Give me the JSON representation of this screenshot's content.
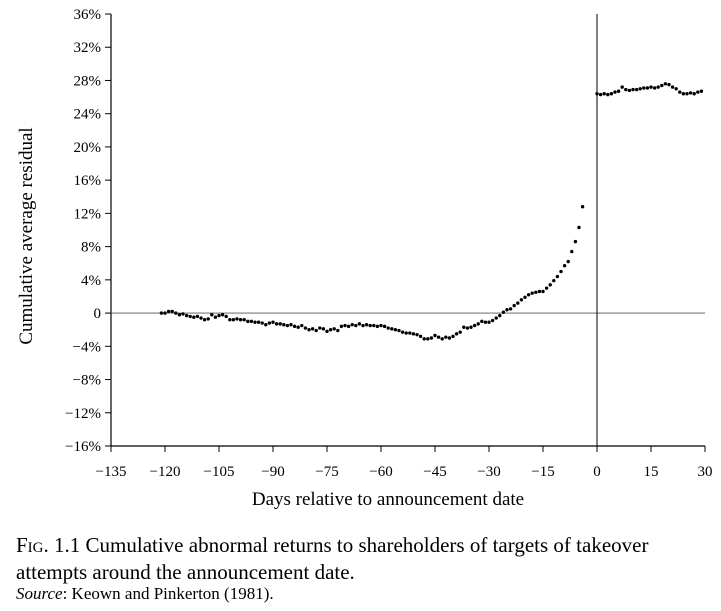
{
  "figure": {
    "label": "Fig. 1.1",
    "caption": "Cumulative abnormal returns to shareholders of targets of takeover attempts around the announcement date.",
    "source_label": "Source",
    "source_text": ": Keown and Pinkerton (1981)."
  },
  "chart_data": {
    "type": "scatter",
    "title": "",
    "xlabel": "Days relative to announcement date",
    "ylabel": "Cumulative average residual",
    "xlim": [
      -135,
      30
    ],
    "ylim": [
      -16,
      36
    ],
    "x_ticks": [
      {
        "value": -135,
        "label": "−135"
      },
      {
        "value": -120,
        "label": "−120"
      },
      {
        "value": -105,
        "label": "−105"
      },
      {
        "value": -90,
        "label": "−90"
      },
      {
        "value": -75,
        "label": "−75"
      },
      {
        "value": -60,
        "label": "−60"
      },
      {
        "value": -45,
        "label": "−45"
      },
      {
        "value": -30,
        "label": "−30"
      },
      {
        "value": -15,
        "label": "−15"
      },
      {
        "value": 0,
        "label": "0"
      },
      {
        "value": 15,
        "label": "15"
      },
      {
        "value": 30,
        "label": "30"
      }
    ],
    "y_ticks": [
      {
        "value": 36,
        "label": "36%"
      },
      {
        "value": 32,
        "label": "32%"
      },
      {
        "value": 28,
        "label": "28%"
      },
      {
        "value": 24,
        "label": "24%"
      },
      {
        "value": 20,
        "label": "20%"
      },
      {
        "value": 16,
        "label": "16%"
      },
      {
        "value": 12,
        "label": "12%"
      },
      {
        "value": 8,
        "label": "8%"
      },
      {
        "value": 4,
        "label": "4%"
      },
      {
        "value": 0,
        "label": "0"
      },
      {
        "value": -4,
        "label": "−4%"
      },
      {
        "value": -8,
        "label": "−8%"
      },
      {
        "value": -12,
        "label": "−12%"
      },
      {
        "value": -16,
        "label": "−16%"
      }
    ],
    "reference_lines": {
      "horizontal_at_y": 0,
      "vertical_at_x": 0
    },
    "grid": false,
    "series": [
      {
        "color": "#000000",
        "points": [
          [
            -121,
            0.0
          ],
          [
            -120,
            0.0
          ],
          [
            -119,
            0.2
          ],
          [
            -118,
            0.2
          ],
          [
            -117,
            0.0
          ],
          [
            -116,
            -0.2
          ],
          [
            -115,
            -0.1
          ],
          [
            -114,
            -0.3
          ],
          [
            -113,
            -0.4
          ],
          [
            -112,
            -0.5
          ],
          [
            -111,
            -0.4
          ],
          [
            -110,
            -0.6
          ],
          [
            -109,
            -0.8
          ],
          [
            -108,
            -0.7
          ],
          [
            -107,
            -0.2
          ],
          [
            -106,
            -0.5
          ],
          [
            -105,
            -0.3
          ],
          [
            -104,
            -0.2
          ],
          [
            -103,
            -0.4
          ],
          [
            -102,
            -0.8
          ],
          [
            -101,
            -0.8
          ],
          [
            -100,
            -0.7
          ],
          [
            -99,
            -0.8
          ],
          [
            -98,
            -0.8
          ],
          [
            -97,
            -1.0
          ],
          [
            -96,
            -1.0
          ],
          [
            -95,
            -1.1
          ],
          [
            -94,
            -1.1
          ],
          [
            -93,
            -1.2
          ],
          [
            -92,
            -1.4
          ],
          [
            -91,
            -1.2
          ],
          [
            -90,
            -1.1
          ],
          [
            -89,
            -1.3
          ],
          [
            -88,
            -1.3
          ],
          [
            -87,
            -1.4
          ],
          [
            -86,
            -1.5
          ],
          [
            -85,
            -1.4
          ],
          [
            -84,
            -1.6
          ],
          [
            -83,
            -1.7
          ],
          [
            -82,
            -1.5
          ],
          [
            -81,
            -1.8
          ],
          [
            -80,
            -2.0
          ],
          [
            -79,
            -1.9
          ],
          [
            -78,
            -2.1
          ],
          [
            -77,
            -1.8
          ],
          [
            -76,
            -1.9
          ],
          [
            -75,
            -2.2
          ],
          [
            -74,
            -2.0
          ],
          [
            -73,
            -1.9
          ],
          [
            -72,
            -2.1
          ],
          [
            -71,
            -1.6
          ],
          [
            -70,
            -1.5
          ],
          [
            -69,
            -1.6
          ],
          [
            -68,
            -1.4
          ],
          [
            -67,
            -1.5
          ],
          [
            -66,
            -1.3
          ],
          [
            -65,
            -1.5
          ],
          [
            -64,
            -1.4
          ],
          [
            -63,
            -1.5
          ],
          [
            -62,
            -1.5
          ],
          [
            -61,
            -1.6
          ],
          [
            -60,
            -1.5
          ],
          [
            -59,
            -1.6
          ],
          [
            -58,
            -1.8
          ],
          [
            -57,
            -1.9
          ],
          [
            -56,
            -2.0
          ],
          [
            -55,
            -2.1
          ],
          [
            -54,
            -2.3
          ],
          [
            -53,
            -2.4
          ],
          [
            -52,
            -2.4
          ],
          [
            -51,
            -2.5
          ],
          [
            -50,
            -2.6
          ],
          [
            -49,
            -2.8
          ],
          [
            -48,
            -3.1
          ],
          [
            -47,
            -3.1
          ],
          [
            -46,
            -3.0
          ],
          [
            -45,
            -2.7
          ],
          [
            -44,
            -2.9
          ],
          [
            -43,
            -3.1
          ],
          [
            -42,
            -2.9
          ],
          [
            -41,
            -3.0
          ],
          [
            -40,
            -2.8
          ],
          [
            -39,
            -2.5
          ],
          [
            -38,
            -2.3
          ],
          [
            -37,
            -1.7
          ],
          [
            -36,
            -1.8
          ],
          [
            -35,
            -1.7
          ],
          [
            -34,
            -1.5
          ],
          [
            -33,
            -1.3
          ],
          [
            -32,
            -1.0
          ],
          [
            -31,
            -1.1
          ],
          [
            -30,
            -1.1
          ],
          [
            -29,
            -0.9
          ],
          [
            -28,
            -0.6
          ],
          [
            -27,
            -0.3
          ],
          [
            -26,
            0.1
          ],
          [
            -25,
            0.4
          ],
          [
            -24,
            0.5
          ],
          [
            -23,
            0.9
          ],
          [
            -22,
            1.2
          ],
          [
            -21,
            1.6
          ],
          [
            -20,
            1.9
          ],
          [
            -19,
            2.2
          ],
          [
            -18,
            2.4
          ],
          [
            -17,
            2.5
          ],
          [
            -16,
            2.6
          ],
          [
            -15,
            2.6
          ],
          [
            -14,
            3.0
          ],
          [
            -13,
            3.4
          ],
          [
            -12,
            3.9
          ],
          [
            -11,
            4.4
          ],
          [
            -10,
            5.0
          ],
          [
            -9,
            5.7
          ],
          [
            -8,
            6.2
          ],
          [
            -7,
            7.4
          ],
          [
            -6,
            8.6
          ],
          [
            -5,
            10.3
          ],
          [
            -4,
            12.8
          ],
          [
            0,
            26.4
          ],
          [
            1,
            26.3
          ],
          [
            2,
            26.4
          ],
          [
            3,
            26.3
          ],
          [
            4,
            26.4
          ],
          [
            5,
            26.6
          ],
          [
            6,
            26.7
          ],
          [
            7,
            27.2
          ],
          [
            8,
            26.9
          ],
          [
            9,
            26.8
          ],
          [
            10,
            26.9
          ],
          [
            11,
            26.9
          ],
          [
            12,
            27.0
          ],
          [
            13,
            27.1
          ],
          [
            14,
            27.1
          ],
          [
            15,
            27.2
          ],
          [
            16,
            27.1
          ],
          [
            17,
            27.2
          ],
          [
            18,
            27.4
          ],
          [
            19,
            27.6
          ],
          [
            20,
            27.5
          ],
          [
            21,
            27.2
          ],
          [
            22,
            27.0
          ],
          [
            23,
            26.6
          ],
          [
            24,
            26.4
          ],
          [
            25,
            26.4
          ],
          [
            26,
            26.5
          ],
          [
            27,
            26.4
          ],
          [
            28,
            26.6
          ],
          [
            29,
            26.7
          ]
        ]
      }
    ]
  }
}
